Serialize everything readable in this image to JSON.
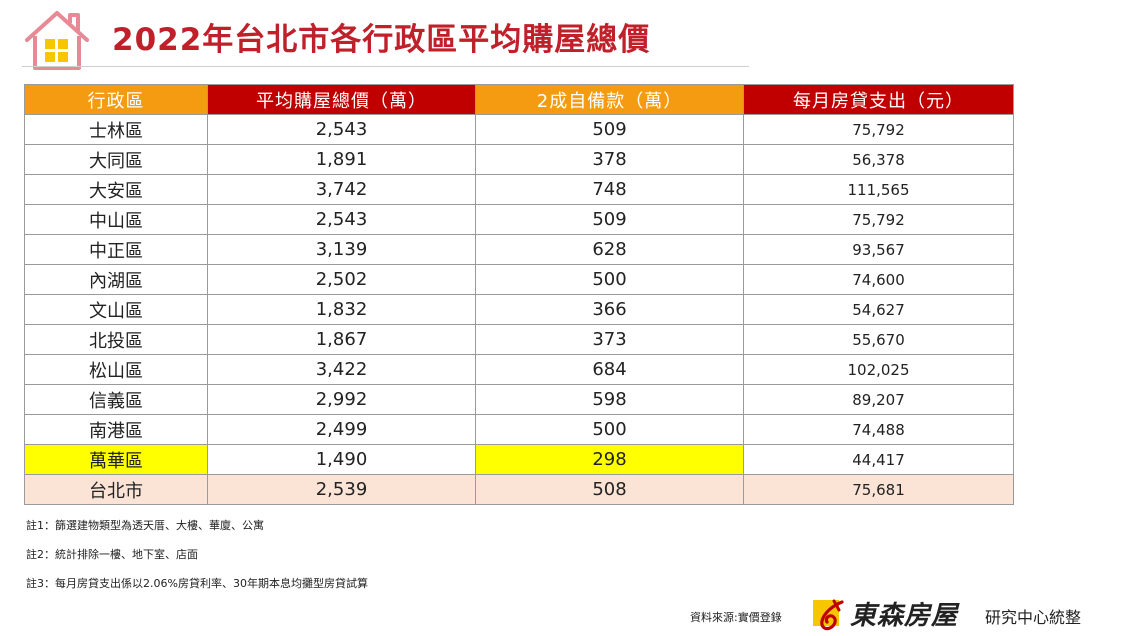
{
  "title": "2022年台北市各行政區平均購屋總價",
  "colors": {
    "title": "#c0202a",
    "header_orange": "#f59b12",
    "header_red": "#c00000",
    "highlight": "#ffff00",
    "total_row": "#fbe3d6"
  },
  "chart_data": {
    "type": "table",
    "columns": [
      "行政區",
      "平均購屋總價（萬）",
      "2成自備款（萬）",
      "每月房貸支出（元）"
    ],
    "rows": [
      [
        "士林區",
        "2,543",
        "509",
        "75,792"
      ],
      [
        "大同區",
        "1,891",
        "378",
        "56,378"
      ],
      [
        "大安區",
        "3,742",
        "748",
        "111,565"
      ],
      [
        "中山區",
        "2,543",
        "509",
        "75,792"
      ],
      [
        "中正區",
        "3,139",
        "628",
        "93,567"
      ],
      [
        "內湖區",
        "2,502",
        "500",
        "74,600"
      ],
      [
        "文山區",
        "1,832",
        "366",
        "54,627"
      ],
      [
        "北投區",
        "1,867",
        "373",
        "55,670"
      ],
      [
        "松山區",
        "3,422",
        "684",
        "102,025"
      ],
      [
        "信義區",
        "2,992",
        "598",
        "89,207"
      ],
      [
        "南港區",
        "2,499",
        "500",
        "74,488"
      ],
      [
        "萬華區",
        "1,490",
        "298",
        "44,417"
      ]
    ],
    "total_row": [
      "台北市",
      "2,539",
      "508",
      "75,681"
    ],
    "highlighted_row": "萬華區"
  },
  "notes": [
    "註1：篩選建物類型為透天厝、大樓、華廈、公寓",
    "註2：統計排除一樓、地下室、店面",
    "註3：每月房貸支出係以2.06%房貸利率、30年期本息均攤型房貸試算"
  ],
  "footer": {
    "source_label": "資料來源:實價登錄",
    "brand_name": "東森房屋",
    "brand_suffix": "研究中心統整"
  },
  "icons": [
    "house-icon",
    "brand-logo-icon"
  ]
}
